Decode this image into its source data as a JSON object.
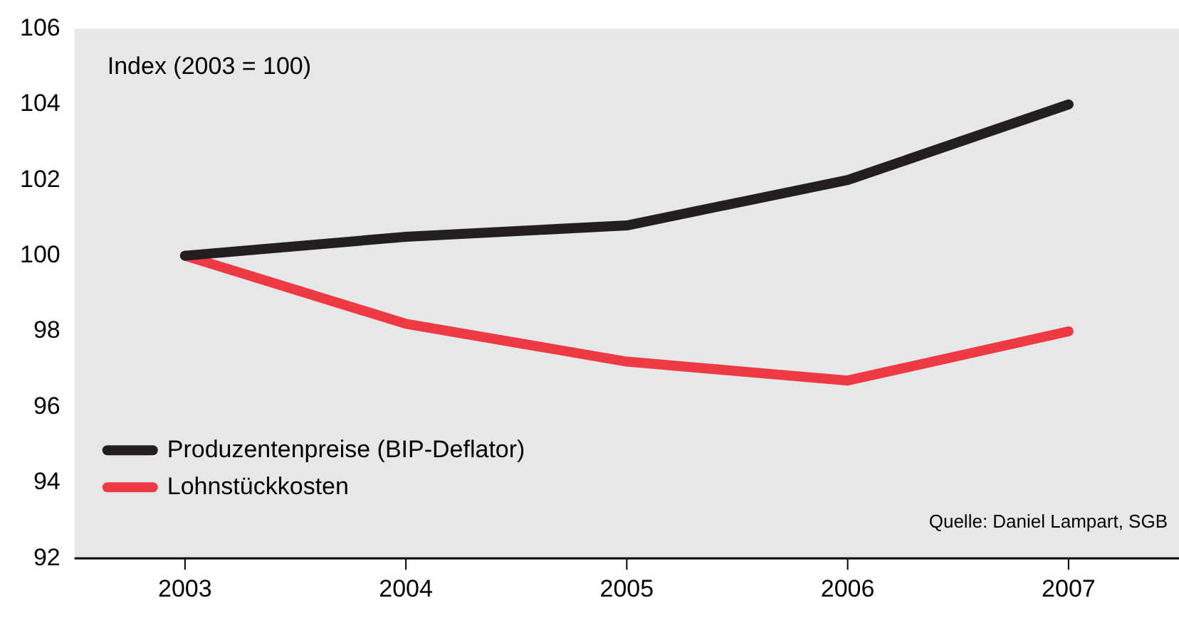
{
  "chart_data": {
    "type": "line",
    "x": [
      2003,
      2004,
      2005,
      2006,
      2007
    ],
    "series": [
      {
        "name": "Produzentenpreise (BIP-Deflator)",
        "color": "#231f20",
        "values": [
          100,
          100.5,
          100.8,
          102,
          104
        ]
      },
      {
        "name": "Lohnstückkosten",
        "color": "#ee3b43",
        "values": [
          100,
          98.2,
          97.2,
          96.7,
          98
        ]
      }
    ],
    "xlim": [
      2002.5,
      2007.5
    ],
    "xticks": [
      {
        "value": 2003,
        "label": "2003"
      },
      {
        "value": 2004,
        "label": "2004"
      },
      {
        "value": 2005,
        "label": "2005"
      },
      {
        "value": 2006,
        "label": "2006"
      },
      {
        "value": 2007,
        "label": "2007"
      }
    ],
    "ylim": [
      92,
      106
    ],
    "yticks": [
      92,
      94,
      96,
      98,
      100,
      102,
      104,
      106
    ],
    "grid": false,
    "legend": "bottom left",
    "marker": "none",
    "line_style": "solid",
    "annotations": [
      "Index (2003 = 100)",
      "Quelle: Daniel Lampart, SGB"
    ]
  }
}
